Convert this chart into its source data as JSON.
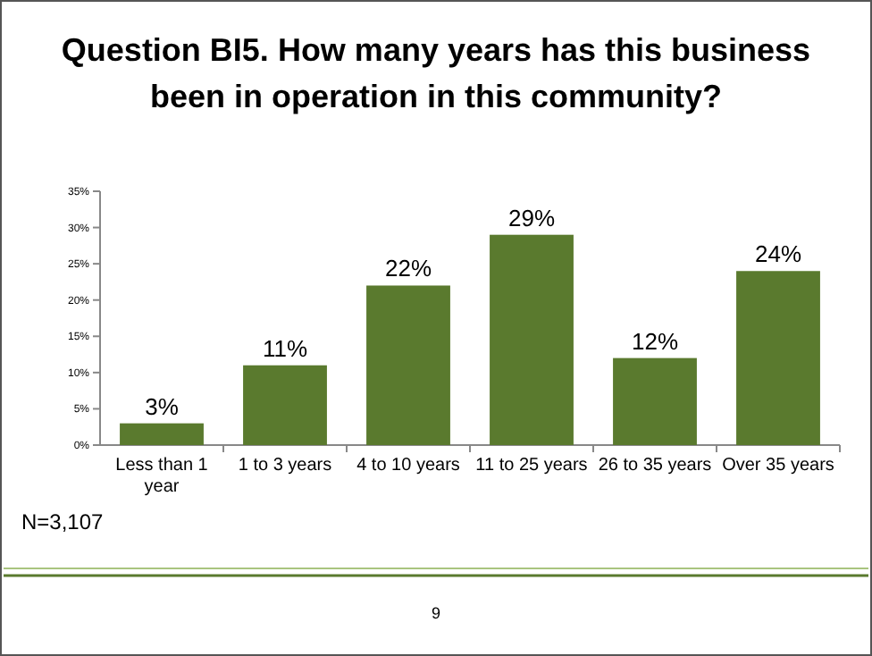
{
  "chart_data": {
    "type": "bar",
    "title": "Question BI5. How many years has this business been in operation in this community?",
    "categories": [
      "Less than 1 year",
      "1 to 3 years",
      "4 to 10 years",
      "11 to 25 years",
      "26 to 35 years",
      "Over 35 years"
    ],
    "values": [
      3,
      11,
      22,
      29,
      12,
      24
    ],
    "color": "#5a7a2e",
    "value_labels": [
      "3%",
      "11%",
      "22%",
      "29%",
      "12%",
      "24%"
    ],
    "ylim": [
      0,
      35
    ],
    "yticks": [
      {
        "value": 0,
        "label": "0%"
      },
      {
        "value": 5,
        "label": "5%"
      },
      {
        "value": 10,
        "label": "10%"
      },
      {
        "value": 15,
        "label": "15%"
      },
      {
        "value": 20,
        "label": "20%"
      },
      {
        "value": 25,
        "label": "25%"
      },
      {
        "value": 30,
        "label": "30%"
      },
      {
        "value": 35,
        "label": "35%"
      }
    ],
    "annotations": [
      "N=3,107",
      "9"
    ]
  }
}
